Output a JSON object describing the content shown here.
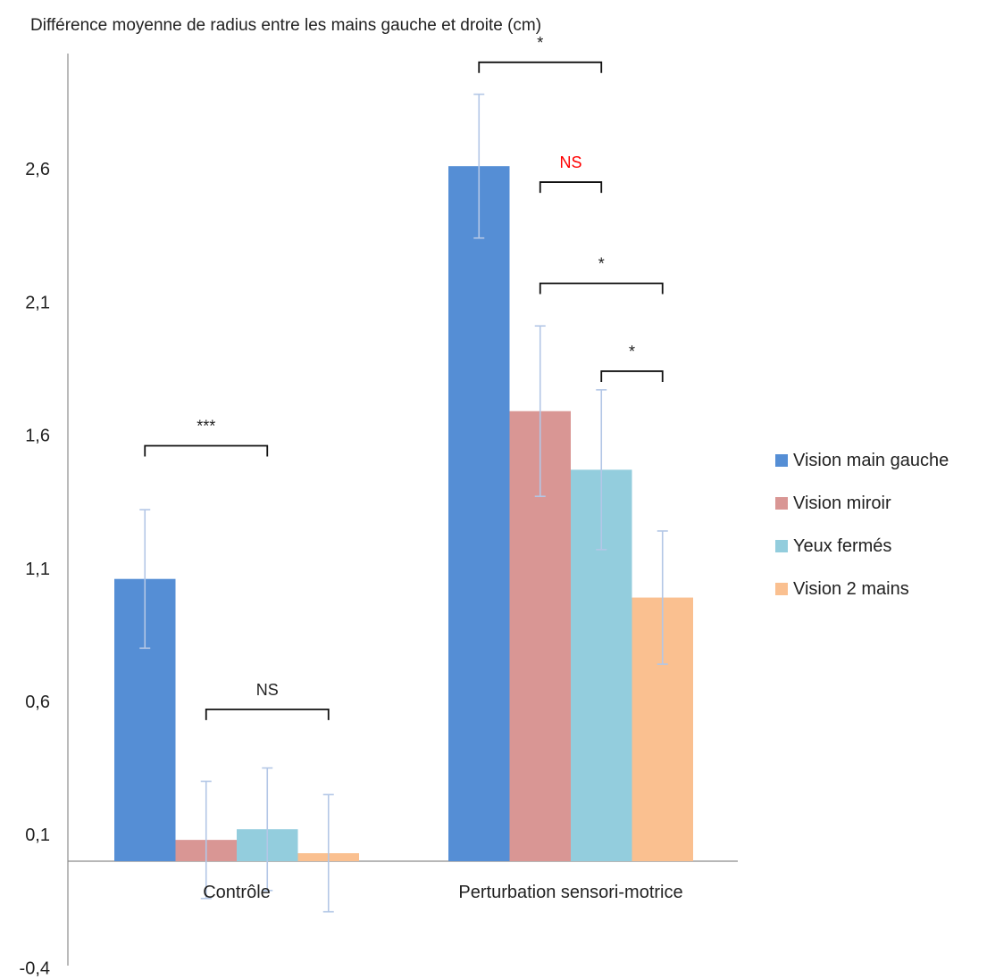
{
  "chart_data": {
    "type": "bar",
    "title": "Différence  moyenne de radius entre les mains gauche et droite (cm)",
    "categories": [
      "Contrôle",
      "Perturbation sensori-motrice"
    ],
    "y_ticks": [
      "2,6",
      "2,1",
      "1,6",
      "1,1",
      "0,6",
      "0,1",
      "-0,4"
    ],
    "ylim": [
      -0.4,
      3.0
    ],
    "grid": false,
    "legend_position": "right",
    "series": [
      {
        "name": "Vision main gauche",
        "color": "#558ED5",
        "values": [
          1.06,
          2.61
        ],
        "errors": [
          0.26,
          0.27
        ]
      },
      {
        "name": "Vision miroir",
        "color": "#D99694",
        "values": [
          0.08,
          1.69
        ],
        "errors": [
          0.22,
          0.32
        ]
      },
      {
        "name": "Yeux fermés",
        "color": "#93CDDD",
        "values": [
          0.12,
          1.47
        ],
        "errors": [
          0.23,
          0.3
        ]
      },
      {
        "name": "Vision 2 mains",
        "color": "#FAC090",
        "values": [
          0.03,
          0.99
        ],
        "errors": [
          0.22,
          0.25
        ]
      }
    ],
    "annotations": [
      {
        "label": "***",
        "category": 0,
        "from_series": 0,
        "to_series": 2,
        "level": 1.56,
        "color": "#222222"
      },
      {
        "label": "NS",
        "category": 0,
        "from_series": 1,
        "to_series": 3,
        "level": 0.57,
        "color": "#222222"
      },
      {
        "label": "*",
        "category": 1,
        "from_series": 0,
        "to_series": 2,
        "level": 3.0,
        "color": "#222222"
      },
      {
        "label": "NS",
        "category": 1,
        "from_series": 1,
        "to_series": 2,
        "level": 2.55,
        "color": "#FF0000"
      },
      {
        "label": "*",
        "category": 1,
        "from_series": 1,
        "to_series": 3,
        "level": 2.17,
        "color": "#222222"
      },
      {
        "label": "*",
        "category": 1,
        "from_series": 2,
        "to_series": 3,
        "level": 1.84,
        "color": "#222222"
      }
    ]
  }
}
